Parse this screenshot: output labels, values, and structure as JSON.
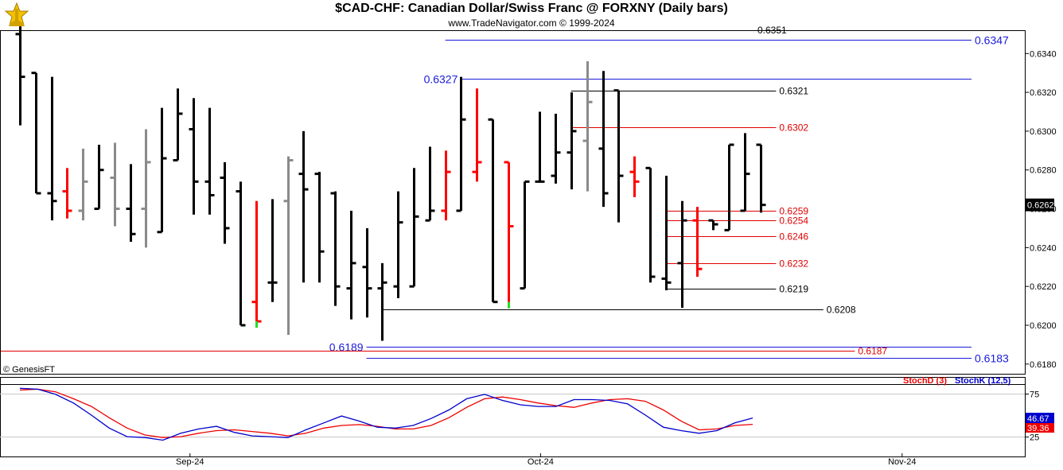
{
  "header": {
    "title": "$CAD-CHF:  Canadian Dollar/Swiss Franc @ FORXNY  (Daily bars)",
    "subtitle": "www.TradeNavigator.com © 1999-2024",
    "credit": "© GenesisFT"
  },
  "colors": {
    "bar": "#000000",
    "bar_gray": "#8a8a8a",
    "bar_red": "#ff0000",
    "green_tick": "#22dd22",
    "level_blue": "#1a1adb",
    "level_red": "#e00000",
    "level_black": "#000000",
    "stoch_d": "#ee0000",
    "stoch_k": "#0000cc",
    "grid": "#c8c8c8",
    "price_box": "#000000"
  },
  "chart_data": [
    {
      "type": "ohlc",
      "title": "$CAD-CHF:  Canadian Dollar/Swiss Franc @ FORXNY  (Daily bars)",
      "ylim": [
        0.6175,
        0.6352
      ],
      "yticks": [
        "0.6340",
        "0.6320",
        "0.6300",
        "0.6280",
        "0.6260",
        "0.6240",
        "0.6220",
        "0.6200",
        "0.6180"
      ],
      "yticks_values": [
        0.634,
        0.632,
        0.63,
        0.628,
        0.626,
        0.624,
        0.622,
        0.62,
        0.618
      ],
      "xticks": [
        {
          "label": "Sep-24",
          "index": 11
        },
        {
          "label": "Oct-24",
          "index": 33
        },
        {
          "label": "Nov-24",
          "index": 56
        }
      ],
      "last_price": "0.6262",
      "bars": [
        {
          "o": 0.635,
          "h": 0.6354,
          "l": 0.6303,
          "c": 0.6328,
          "color": "black"
        },
        {
          "o": 0.633,
          "h": 0.633,
          "l": 0.6268,
          "c": 0.6268,
          "color": "black"
        },
        {
          "o": 0.6268,
          "h": 0.6328,
          "l": 0.6254,
          "c": 0.6264,
          "color": "black"
        },
        {
          "o": 0.6269,
          "h": 0.6281,
          "l": 0.6255,
          "c": 0.6259,
          "color": "red"
        },
        {
          "o": 0.6259,
          "h": 0.6291,
          "l": 0.6254,
          "c": 0.6274,
          "color": "gray"
        },
        {
          "o": 0.626,
          "h": 0.6293,
          "l": 0.626,
          "c": 0.628,
          "color": "black"
        },
        {
          "o": 0.6276,
          "h": 0.6294,
          "l": 0.6251,
          "c": 0.626,
          "color": "gray"
        },
        {
          "o": 0.626,
          "h": 0.6283,
          "l": 0.6243,
          "c": 0.6247,
          "color": "black"
        },
        {
          "o": 0.626,
          "h": 0.6301,
          "l": 0.624,
          "c": 0.6284,
          "color": "gray"
        },
        {
          "o": 0.6248,
          "h": 0.6312,
          "l": 0.6248,
          "c": 0.6286,
          "color": "black"
        },
        {
          "o": 0.6285,
          "h": 0.6322,
          "l": 0.6285,
          "c": 0.6309,
          "color": "black"
        },
        {
          "o": 0.6301,
          "h": 0.6317,
          "l": 0.6257,
          "c": 0.6274,
          "color": "black"
        },
        {
          "o": 0.6274,
          "h": 0.6312,
          "l": 0.6257,
          "c": 0.6267,
          "color": "black"
        },
        {
          "o": 0.6276,
          "h": 0.6284,
          "l": 0.6242,
          "c": 0.625,
          "color": "black"
        },
        {
          "o": 0.6269,
          "h": 0.6274,
          "l": 0.62,
          "c": 0.62,
          "color": "black"
        },
        {
          "o": 0.6212,
          "h": 0.6264,
          "l": 0.6202,
          "c": 0.6202,
          "color": "red"
        },
        {
          "o": 0.6222,
          "h": 0.6265,
          "l": 0.6212,
          "c": 0.6222,
          "color": "black"
        },
        {
          "o": 0.6264,
          "h": 0.6287,
          "l": 0.6195,
          "c": 0.6285,
          "color": "gray"
        },
        {
          "o": 0.6278,
          "h": 0.63,
          "l": 0.6222,
          "c": 0.627,
          "color": "black"
        },
        {
          "o": 0.6278,
          "h": 0.6279,
          "l": 0.6222,
          "c": 0.6238,
          "color": "black"
        },
        {
          "o": 0.6268,
          "h": 0.6269,
          "l": 0.621,
          "c": 0.622,
          "color": "black"
        },
        {
          "o": 0.6219,
          "h": 0.6259,
          "l": 0.6203,
          "c": 0.6232,
          "color": "black"
        },
        {
          "o": 0.623,
          "h": 0.625,
          "l": 0.6204,
          "c": 0.6219,
          "color": "black"
        },
        {
          "o": 0.6219,
          "h": 0.6232,
          "l": 0.6192,
          "c": 0.6222,
          "color": "black"
        },
        {
          "o": 0.622,
          "h": 0.6269,
          "l": 0.6214,
          "c": 0.6253,
          "color": "black"
        },
        {
          "o": 0.622,
          "h": 0.6281,
          "l": 0.622,
          "c": 0.6256,
          "color": "black"
        },
        {
          "o": 0.6254,
          "h": 0.6292,
          "l": 0.6254,
          "c": 0.6259,
          "color": "black"
        },
        {
          "o": 0.6259,
          "h": 0.629,
          "l": 0.6254,
          "c": 0.6279,
          "color": "red"
        },
        {
          "o": 0.6259,
          "h": 0.6328,
          "l": 0.6259,
          "c": 0.6306,
          "color": "black"
        },
        {
          "o": 0.6279,
          "h": 0.6322,
          "l": 0.6274,
          "c": 0.6284,
          "color": "red"
        },
        {
          "o": 0.6306,
          "h": 0.6306,
          "l": 0.6212,
          "c": 0.6212,
          "color": "black"
        },
        {
          "o": 0.6284,
          "h": 0.6284,
          "l": 0.6212,
          "c": 0.6251,
          "color": "red"
        },
        {
          "o": 0.6219,
          "h": 0.6274,
          "l": 0.6219,
          "c": 0.6274,
          "color": "black"
        },
        {
          "o": 0.6274,
          "h": 0.631,
          "l": 0.6274,
          "c": 0.6274,
          "color": "black"
        },
        {
          "o": 0.6277,
          "h": 0.6309,
          "l": 0.6273,
          "c": 0.6289,
          "color": "black"
        },
        {
          "o": 0.6289,
          "h": 0.632,
          "l": 0.627,
          "c": 0.63,
          "color": "black"
        },
        {
          "o": 0.6295,
          "h": 0.6336,
          "l": 0.6269,
          "c": 0.6315,
          "color": "gray"
        },
        {
          "o": 0.6291,
          "h": 0.6331,
          "l": 0.6261,
          "c": 0.6268,
          "color": "black"
        },
        {
          "o": 0.6321,
          "h": 0.6321,
          "l": 0.6253,
          "c": 0.6277,
          "color": "black"
        },
        {
          "o": 0.6279,
          "h": 0.6287,
          "l": 0.6266,
          "c": 0.6274,
          "color": "red"
        },
        {
          "o": 0.6281,
          "h": 0.6281,
          "l": 0.6222,
          "c": 0.6225,
          "color": "black"
        },
        {
          "o": 0.6224,
          "h": 0.6277,
          "l": 0.6218,
          "c": 0.6222,
          "color": "black"
        },
        {
          "o": 0.6232,
          "h": 0.6264,
          "l": 0.6209,
          "c": 0.6254,
          "color": "black"
        },
        {
          "o": 0.6254,
          "h": 0.6261,
          "l": 0.6225,
          "c": 0.6229,
          "color": "red"
        },
        {
          "o": 0.6254,
          "h": 0.6254,
          "l": 0.6249,
          "c": 0.6252,
          "color": "black"
        },
        {
          "o": 0.6249,
          "h": 0.6293,
          "l": 0.6249,
          "c": 0.6293,
          "color": "black"
        },
        {
          "o": 0.6259,
          "h": 0.6299,
          "l": 0.6259,
          "c": 0.6278,
          "color": "black"
        },
        {
          "o": 0.6293,
          "h": 0.6293,
          "l": 0.6258,
          "c": 0.6262,
          "color": "black"
        }
      ],
      "green_ticks": [
        15,
        31
      ],
      "levels": [
        {
          "value": 0.6347,
          "label": "0.6347",
          "color": "blue",
          "from": 27,
          "to": 58,
          "label_pos": "right-outside",
          "font": 14
        },
        {
          "value": 0.6351,
          "label": "0.6351",
          "color": "black",
          "from": 45,
          "to": 46,
          "label_pos": "right-outside",
          "font": 12
        },
        {
          "value": 0.6327,
          "label": "0.6327",
          "color": "blue",
          "from": 28,
          "to": 58,
          "label_pos": "left",
          "font": 14
        },
        {
          "value": 0.6321,
          "label": "0.6321",
          "color": "black",
          "from": 35,
          "to": 48,
          "label_pos": "right-outside",
          "font": 12
        },
        {
          "value": 0.6302,
          "label": "0.6302",
          "color": "red",
          "from": 35,
          "to": 48,
          "label_pos": "right-outside",
          "font": 12
        },
        {
          "value": 0.6259,
          "label": "0.6259",
          "color": "red",
          "from": 41,
          "to": 48,
          "label_pos": "right-outside",
          "font": 12
        },
        {
          "value": 0.6254,
          "label": "0.6254",
          "color": "red",
          "from": 41,
          "to": 48,
          "label_pos": "right-outside",
          "font": 12
        },
        {
          "value": 0.6246,
          "label": "0.6246",
          "color": "red",
          "from": 41,
          "to": 48,
          "label_pos": "right-outside",
          "font": 12
        },
        {
          "value": 0.6232,
          "label": "0.6232",
          "color": "red",
          "from": 41,
          "to": 48,
          "label_pos": "right-outside",
          "font": 12
        },
        {
          "value": 0.6219,
          "label": "0.6219",
          "color": "black",
          "from": 41,
          "to": 48,
          "label_pos": "right-outside",
          "font": 12
        },
        {
          "value": 0.6208,
          "label": "0.6208",
          "color": "black",
          "from": 23,
          "to": 51,
          "label_pos": "right-outside",
          "font": 12
        },
        {
          "value": 0.6189,
          "label": "0.6189",
          "color": "blue",
          "from": 22,
          "to": 58,
          "label_pos": "left",
          "font": 14
        },
        {
          "value": 0.6187,
          "label": "0.6187",
          "color": "red",
          "from": -1,
          "to": 53,
          "label_pos": "right-outside",
          "font": 12
        },
        {
          "value": 0.6183,
          "label": "0.6183",
          "color": "blue",
          "from": 22,
          "to": 58,
          "label_pos": "right-outside",
          "font": 14
        }
      ]
    },
    {
      "type": "line",
      "title": "",
      "ylim": [
        15,
        85
      ],
      "yticks": [
        "75",
        "50",
        "25"
      ],
      "yticks_values": [
        75,
        50,
        25
      ],
      "legend": "top-right",
      "series": [
        {
          "name": "StochD (3)",
          "color": "red",
          "last": "39.36",
          "values": [
            79,
            80,
            77,
            69,
            60,
            47,
            35,
            27,
            24,
            25,
            29,
            32,
            33,
            31,
            29,
            26,
            29,
            35,
            38,
            39,
            37,
            34,
            34,
            38,
            47,
            59,
            69,
            71,
            68,
            64,
            61,
            59,
            64,
            68,
            69,
            66,
            56,
            43,
            33,
            34,
            38,
            39.36
          ]
        },
        {
          "name": "StochK (12,5)",
          "color": "blue",
          "last": "46.67",
          "values": [
            81,
            80,
            74,
            64,
            50,
            35,
            25,
            24,
            21,
            29,
            34,
            37,
            30,
            26,
            25,
            24,
            33,
            41,
            49,
            43,
            36,
            35,
            38,
            46,
            56,
            69,
            74,
            67,
            62,
            60,
            60,
            68,
            68,
            67,
            63,
            50,
            36,
            32,
            29,
            32,
            41,
            46.67
          ]
        }
      ]
    }
  ]
}
